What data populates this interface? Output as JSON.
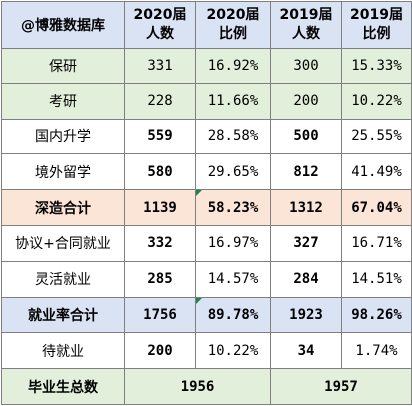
{
  "brand": "@博雅数据库",
  "headers": {
    "c2020_count": "2020届\n人数",
    "c2020_ratio": "2020届\n比例",
    "c2019_count": "2019届\n人数",
    "c2019_ratio": "2019届\n比例"
  },
  "header_lines": {
    "c2020_count": [
      "2020届",
      "人数"
    ],
    "c2020_ratio": [
      "2020届",
      "比例"
    ],
    "c2019_count": [
      "2019届",
      "人数"
    ],
    "c2019_ratio": [
      "2019届",
      "比例"
    ]
  },
  "rows": [
    {
      "label": "保研",
      "n2020": "331",
      "p2020": "16.92%",
      "n2019": "300",
      "p2019": "15.33%"
    },
    {
      "label": "考研",
      "n2020": "228",
      "p2020": "11.66%",
      "n2019": "200",
      "p2019": "10.22%"
    },
    {
      "label": "国内升学",
      "n2020": "559",
      "p2020": "28.58%",
      "n2019": "500",
      "p2019": "25.55%"
    },
    {
      "label": "境外留学",
      "n2020": "580",
      "p2020": "29.65%",
      "n2019": "812",
      "p2019": "41.49%"
    },
    {
      "label": "深造合计",
      "n2020": "1139",
      "p2020": "58.23%",
      "n2019": "1312",
      "p2019": "67.04%"
    },
    {
      "label": "协议+合同就业",
      "n2020": "332",
      "p2020": "16.97%",
      "n2019": "327",
      "p2019": "16.71%"
    },
    {
      "label": "灵活就业",
      "n2020": "285",
      "p2020": "14.57%",
      "n2019": "284",
      "p2019": "14.51%"
    },
    {
      "label": "就业率合计",
      "n2020": "1756",
      "p2020": "89.78%",
      "n2019": "1923",
      "p2019": "98.26%"
    },
    {
      "label": "待就业",
      "n2020": "200",
      "p2020": "10.22%",
      "n2019": "34",
      "p2019": "1.74%"
    }
  ],
  "total": {
    "label": "毕业生总数",
    "v2020": "1956",
    "v2019": "1957"
  },
  "colors": {
    "header_bg": "#dae3f3",
    "green_bg": "#e2efda",
    "orange_bg": "#fbe5d6",
    "blue_text": "#2e75b6",
    "red_text": "#c00000"
  }
}
